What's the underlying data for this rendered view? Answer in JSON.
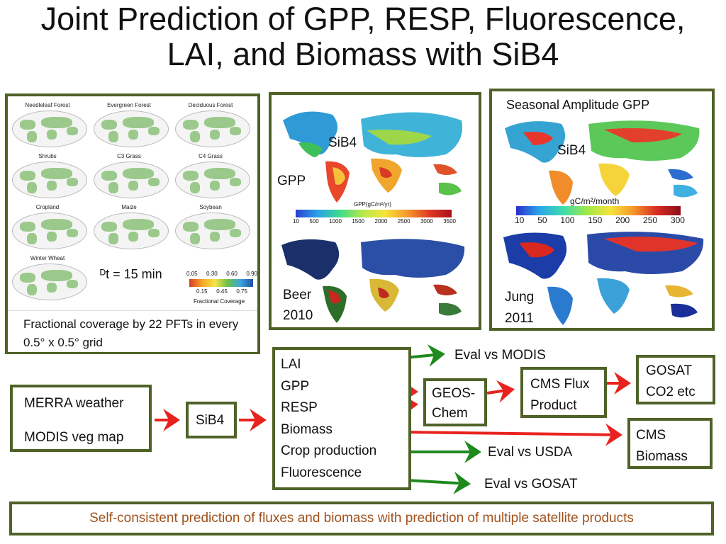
{
  "title": {
    "line1": "Joint Prediction of GPP, RESP, Fluorescence,",
    "line2": "LAI, and Biomass with SiB4"
  },
  "panel_pft": {
    "pft_names": [
      "Needleleaf Forest",
      "Evergreen Forest",
      "Deciduous Forest",
      "Shrubs",
      "C3 Grass",
      "C4 Grass",
      "Cropland",
      "Maize",
      "Soybean",
      "Winter Wheat"
    ],
    "timestep": "ᴰt = 15 min",
    "colorbar_top_ticks": [
      "0.05",
      "0.30",
      "0.60",
      "0.90"
    ],
    "colorbar_bottom_ticks": [
      "0.15",
      "0.45",
      "0.75"
    ],
    "colorbar_label": "Fractional Coverage",
    "caption": "Fractional coverage by 22 PFTs in every 0.5° x 0.5° grid"
  },
  "panel_gpp": {
    "sib4_label": "SiB4",
    "gpp_label": "GPP",
    "colorbar_title": "GPP(gC/m²/yr)",
    "colorbar_ticks": [
      "10",
      "500",
      "1000",
      "1500",
      "2000",
      "2500",
      "3000",
      "3500"
    ],
    "beer_label_line1": "Beer",
    "beer_label_line2": "2010"
  },
  "panel_seasonal": {
    "title": "Seasonal Amplitude GPP",
    "sib4_label": "SiB4",
    "colorbar_unit": "gC/m²/month",
    "colorbar_ticks": [
      "10",
      "50",
      "100",
      "150",
      "200",
      "250",
      "300"
    ],
    "jung_label_line1": "Jung",
    "jung_label_line2": "2011"
  },
  "flow": {
    "inputs": [
      "MERRA weather",
      "MODIS veg map"
    ],
    "model": "SiB4",
    "outputs": [
      "LAI",
      "GPP",
      "RESP",
      "Biomass",
      "Crop production",
      "Fluorescence"
    ],
    "eval_modis": "Eval vs MODIS",
    "geos_chem_line1": "GEOS-",
    "geos_chem_line2": "Chem",
    "cms_flux_line1": "CMS Flux",
    "cms_flux_line2": "Product",
    "gosat_line1": "GOSAT",
    "gosat_line2": "CO2 etc",
    "cms_biomass_line1": "CMS",
    "cms_biomass_line2": "Biomass",
    "eval_usda": "Eval vs USDA",
    "eval_gosat": "Eval vs GOSAT"
  },
  "footer": "Self-consistent prediction of fluxes and biomass with prediction of multiple satellite products",
  "colors": {
    "border": "#4f6228",
    "red_arrow": "#e8231f",
    "green_arrow": "#1e8a1e",
    "footer_text": "#a0521c"
  }
}
